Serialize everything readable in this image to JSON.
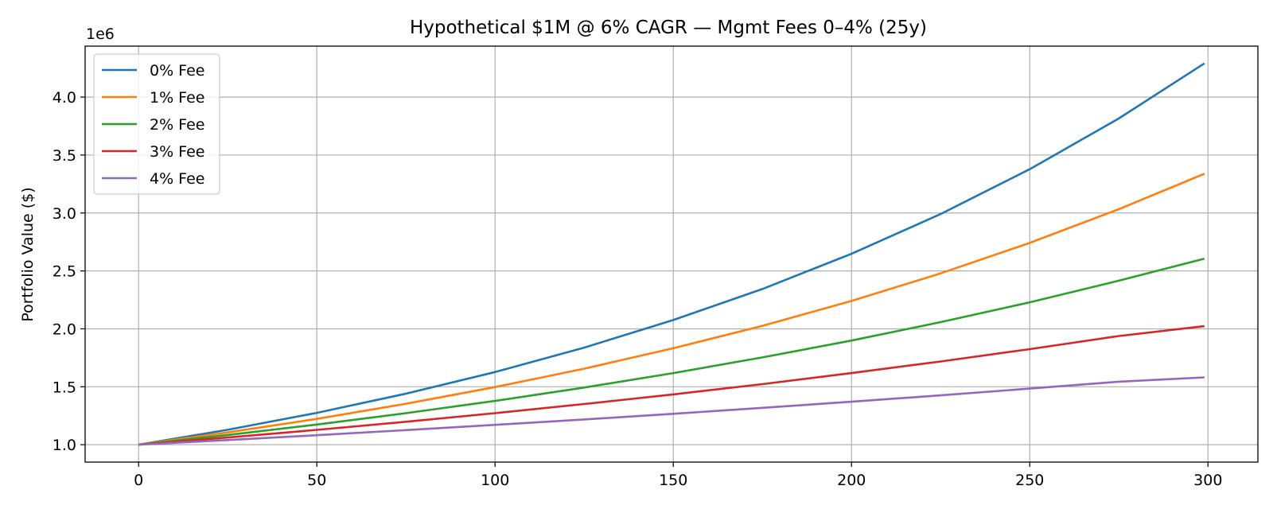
{
  "chart_data": {
    "type": "line",
    "title": "Hypothetical $1M @ 6% CAGR — Mgmt Fees 0–4% (25y)",
    "xlabel": "",
    "ylabel": "Portfolio Value ($)",
    "offset_text": "1e6",
    "xlim": [
      -15,
      314
    ],
    "ylim": [
      850000,
      4440000
    ],
    "x_ticks": [
      0,
      50,
      100,
      150,
      200,
      250,
      300
    ],
    "y_ticks": [
      1000000,
      1500000,
      2000000,
      2500000,
      3000000,
      3500000,
      4000000
    ],
    "y_tick_labels": [
      "1.0",
      "1.5",
      "2.0",
      "2.5",
      "3.0",
      "3.5",
      "4.0"
    ],
    "grid": true,
    "legend_position": "upper-left",
    "x": [
      0,
      25,
      50,
      75,
      100,
      125,
      150,
      175,
      200,
      225,
      250,
      275,
      299
    ],
    "series": [
      {
        "name": "0% Fee",
        "color": "#1f77b4",
        "values": [
          1000000,
          1129000,
          1275000,
          1440000,
          1627000,
          1838000,
          2076000,
          2344000,
          2648000,
          2991000,
          3378000,
          3816000,
          4291000
        ]
      },
      {
        "name": "1% Fee",
        "color": "#ff7f0e",
        "values": [
          1000000,
          1106000,
          1223000,
          1353000,
          1497000,
          1656000,
          1832000,
          2026000,
          2241000,
          2479000,
          2742000,
          3033000,
          3338000
        ]
      },
      {
        "name": "2% Fee",
        "color": "#2ca02c",
        "values": [
          1000000,
          1084000,
          1174000,
          1272000,
          1378000,
          1493000,
          1618000,
          1753000,
          1899000,
          2058000,
          2229000,
          2416000,
          2606000
        ]
      },
      {
        "name": "3% Fee",
        "color": "#d62728",
        "values": [
          1000000,
          1062000,
          1128000,
          1198000,
          1272000,
          1351000,
          1434000,
          1523000,
          1618000,
          1718000,
          1825000,
          1938000,
          2023000
        ]
      },
      {
        "name": "4% Fee",
        "color": "#9467bd",
        "values": [
          1000000,
          1040000,
          1082000,
          1126000,
          1171000,
          1218000,
          1267000,
          1318000,
          1371000,
          1426000,
          1484000,
          1544000,
          1581000
        ]
      }
    ]
  }
}
